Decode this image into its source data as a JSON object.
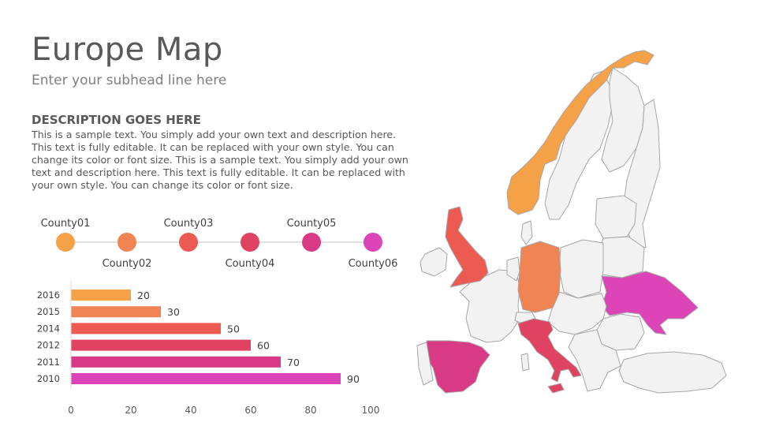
{
  "slide": {
    "title": "Europe Map",
    "subtitle": "Enter your subhead line here"
  },
  "description": {
    "heading": "DESCRIPTION GOES HERE",
    "body": "This is a sample text. You simply add your own text and description here. This text is fully editable. It can be replaced with your own style. You can change its color or font size. This is a sample text. You simply add your own text and description here. This text is fully editable. It can be replaced with your own style. You can change its color or font size."
  },
  "timeline": {
    "items": [
      {
        "label": "County01",
        "color": "#f5a147"
      },
      {
        "label": "County02",
        "color": "#f08452"
      },
      {
        "label": "County03",
        "color": "#ec5a52"
      },
      {
        "label": "County04",
        "color": "#e04361"
      },
      {
        "label": "County05",
        "color": "#d93a85"
      },
      {
        "label": "County06",
        "color": "#dd44b8"
      }
    ],
    "line_color": "#d9d9d9"
  },
  "chart_data": {
    "type": "bar",
    "orientation": "horizontal",
    "categories": [
      "2016",
      "2015",
      "2014",
      "2012",
      "2011",
      "2010"
    ],
    "values": [
      20,
      30,
      50,
      60,
      70,
      90
    ],
    "colors": [
      "#f5a147",
      "#f08452",
      "#ec5a52",
      "#e04361",
      "#d93a85",
      "#dd44b8"
    ],
    "xlim": [
      0,
      100
    ],
    "xticks": [
      0,
      20,
      40,
      60,
      80,
      100
    ],
    "grid": false,
    "data_labels": true
  },
  "map": {
    "base_color": "#f2f2f2",
    "border_color": "#a6a6a6",
    "highlights": [
      {
        "country": "norway",
        "color": "#f5a147"
      },
      {
        "country": "germany",
        "color": "#f08452"
      },
      {
        "country": "united-kingdom",
        "color": "#ec5a52"
      },
      {
        "country": "italy",
        "color": "#e04361"
      },
      {
        "country": "spain",
        "color": "#d93a85"
      },
      {
        "country": "ukraine",
        "color": "#dd44b8"
      }
    ]
  }
}
